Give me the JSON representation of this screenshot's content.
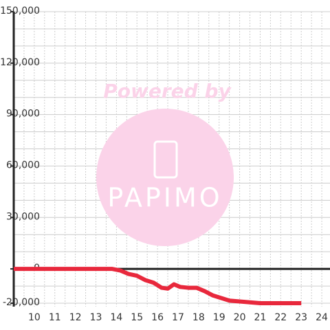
{
  "chart_data": {
    "type": "line",
    "watermark": [
      "Powered by",
      "PAPIMO"
    ],
    "x": [
      9,
      13.8,
      14.2,
      14.6,
      15,
      15.4,
      15.8,
      16.2,
      16.5,
      16.8,
      17.1,
      17.5,
      17.9,
      18.3,
      18.7,
      19.1,
      19.5,
      20,
      20.5,
      21,
      22,
      23
    ],
    "series": [
      {
        "color": "#e8283c",
        "values": [
          0,
          0,
          -1000,
          -3000,
          -4000,
          -6500,
          -8000,
          -11000,
          -11500,
          -9000,
          -10500,
          -11000,
          -11000,
          -13000,
          -15500,
          -17000,
          -18500,
          -19000,
          -19500,
          -20000,
          -20000,
          -20000
        ]
      }
    ],
    "xlim": [
      9,
      24.4
    ],
    "ylim": [
      -22000,
      150000
    ],
    "xticks": [
      10,
      11,
      12,
      13,
      14,
      15,
      16,
      17,
      18,
      19,
      20,
      21,
      22,
      23,
      24
    ],
    "xminor": [
      9.5,
      10.5,
      11.5,
      12.5,
      13.5,
      14.5,
      15.5,
      16.5,
      17.5,
      18.5,
      19.5,
      20.5,
      21.5,
      22.5,
      23.5
    ],
    "yticks": [
      {
        "value": -20000,
        "label": "-20,000"
      },
      0,
      {
        "value": 30000,
        "label": "30,000"
      },
      {
        "value": 60000,
        "label": "60,000"
      },
      {
        "value": 90000,
        "label": "90,000"
      },
      {
        "value": 120000,
        "label": "120,000"
      },
      {
        "value": 150000,
        "label": "150,000"
      }
    ],
    "yminor": [
      -10000,
      10000,
      20000,
      40000,
      50000,
      70000,
      80000,
      100000,
      110000,
      130000,
      140000
    ],
    "grid": true
  }
}
